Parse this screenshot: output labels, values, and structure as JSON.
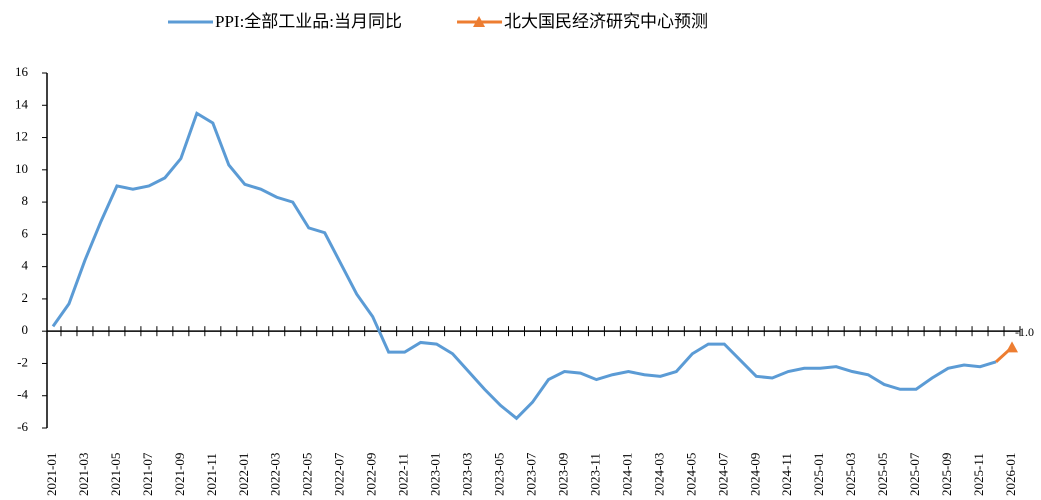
{
  "chart_data": {
    "type": "line",
    "categories": [
      "2021-01",
      null,
      "2021-03",
      null,
      "2021-05",
      null,
      "2021-07",
      null,
      "2021-09",
      null,
      "2021-11",
      null,
      "2022-01",
      null,
      "2022-03",
      null,
      "2022-05",
      null,
      "2022-07",
      null,
      "2022-09",
      null,
      "2022-11",
      null,
      "2023-01",
      null,
      "2023-03",
      null,
      "2023-05",
      null,
      "2023-07",
      null,
      "2023-09",
      null,
      "2023-11",
      null,
      "2024-01",
      null,
      "2024-03",
      null,
      "2024-05",
      null,
      "2024-07",
      null,
      "2024-09",
      null,
      "2024-11",
      null,
      "2025-01",
      null,
      "2025-03",
      null,
      "2025-05",
      null,
      "2025-07",
      null,
      "2025-09",
      null,
      "2025-11",
      null,
      "2026-01"
    ],
    "series": [
      {
        "name": "PPI:全部工业品:当月同比",
        "color": "#5b9bd5",
        "values": [
          0.3,
          1.7,
          4.4,
          6.8,
          9.0,
          8.8,
          9.0,
          9.5,
          10.7,
          13.5,
          12.9,
          10.3,
          9.1,
          8.8,
          8.3,
          8.0,
          6.4,
          6.1,
          4.2,
          2.3,
          0.9,
          -1.3,
          -1.3,
          -0.7,
          -0.8,
          -1.4,
          -2.5,
          -3.6,
          -4.6,
          -5.4,
          -4.4,
          -3.0,
          -2.5,
          -2.6,
          -3.0,
          -2.7,
          -2.5,
          -2.7,
          -2.8,
          -2.5,
          -1.4,
          -0.8,
          -0.8,
          -1.8,
          -2.8,
          -2.9,
          -2.5,
          -2.3,
          -2.3,
          -2.2,
          -2.5,
          -2.7,
          -3.3,
          -3.6,
          -3.6,
          -2.9,
          -2.3,
          -2.1,
          -2.2,
          -1.9,
          null
        ]
      },
      {
        "name": "北大国民经济研究中心预测",
        "color": "#ed7d31",
        "marker": "triangle",
        "values": [
          null,
          null,
          null,
          null,
          null,
          null,
          null,
          null,
          null,
          null,
          null,
          null,
          null,
          null,
          null,
          null,
          null,
          null,
          null,
          null,
          null,
          null,
          null,
          null,
          null,
          null,
          null,
          null,
          null,
          null,
          null,
          null,
          null,
          null,
          null,
          null,
          null,
          null,
          null,
          null,
          null,
          null,
          null,
          null,
          null,
          null,
          null,
          null,
          null,
          null,
          null,
          null,
          null,
          null,
          null,
          null,
          null,
          null,
          null,
          -1.9,
          -1.0
        ],
        "value_labels": [
          null,
          null,
          null,
          null,
          null,
          null,
          null,
          null,
          null,
          null,
          null,
          null,
          null,
          null,
          null,
          null,
          null,
          null,
          null,
          null,
          null,
          null,
          null,
          null,
          null,
          null,
          null,
          null,
          null,
          null,
          null,
          null,
          null,
          null,
          null,
          null,
          null,
          null,
          null,
          null,
          null,
          null,
          null,
          null,
          null,
          null,
          null,
          null,
          null,
          null,
          null,
          null,
          null,
          null,
          null,
          null,
          null,
          null,
          null,
          null,
          "-1.0"
        ]
      }
    ],
    "ylim": [
      -6,
      16
    ],
    "yticks": [
      -6,
      -4,
      -2,
      0,
      2,
      4,
      6,
      8,
      10,
      12,
      14,
      16
    ],
    "grid": false,
    "legend": "top"
  }
}
